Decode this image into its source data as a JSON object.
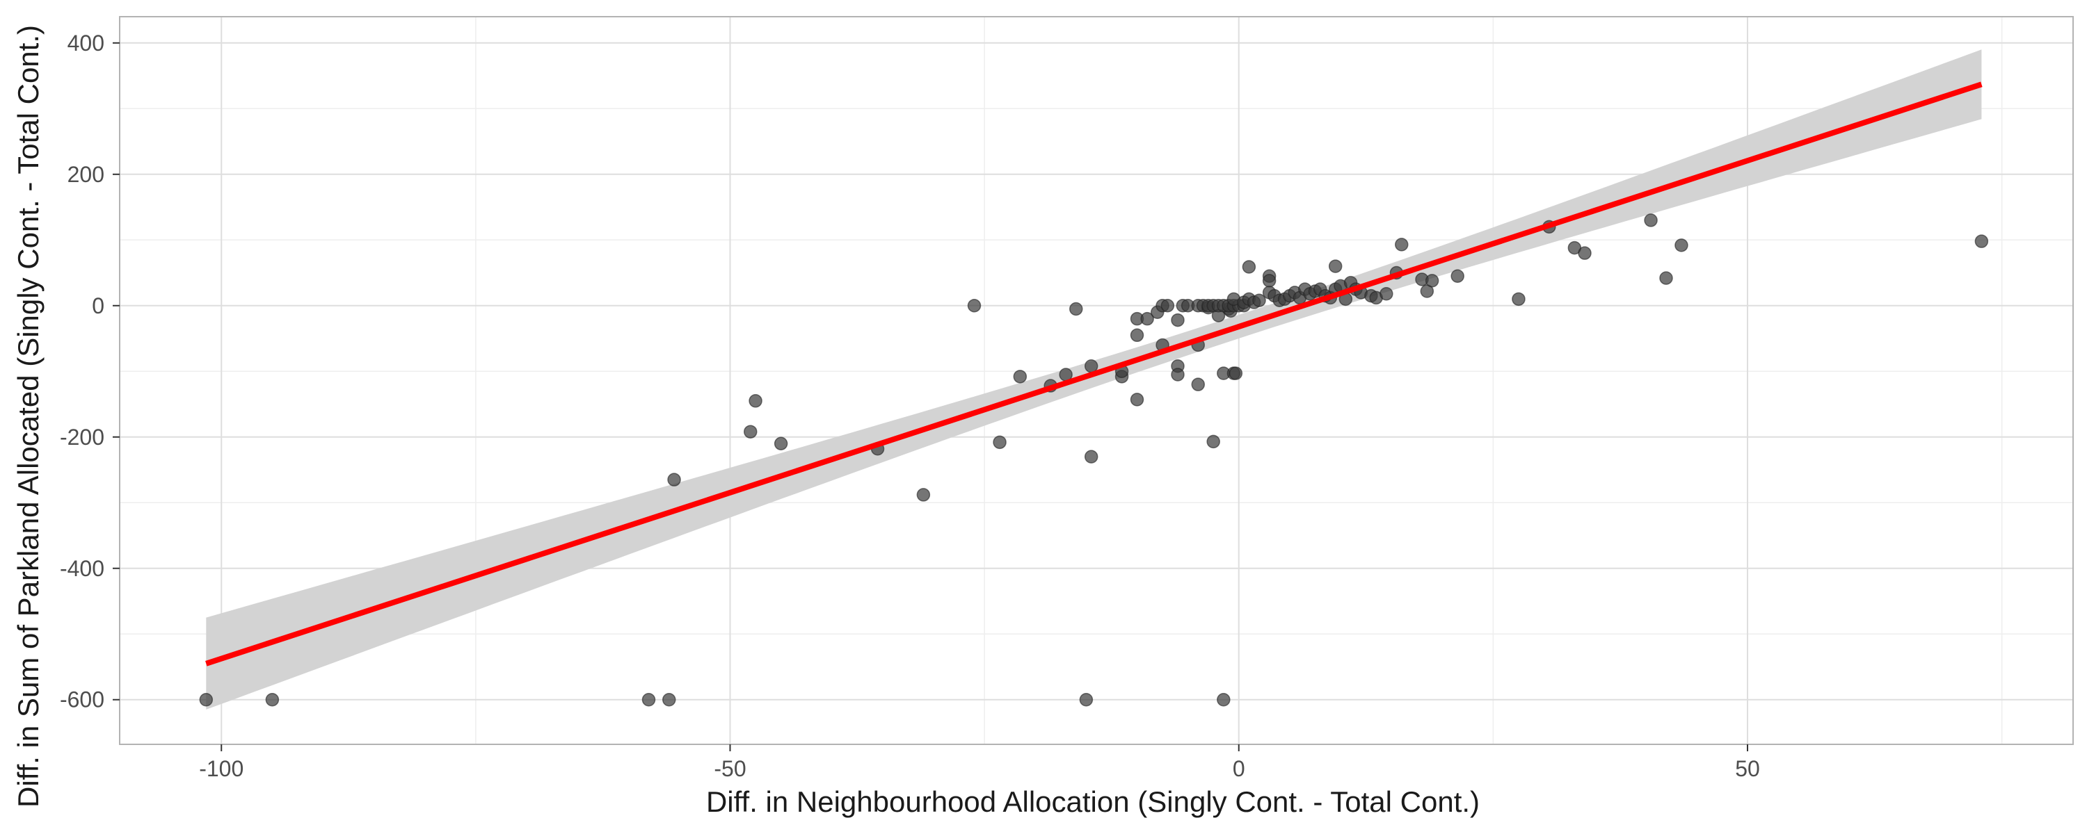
{
  "chart_data": {
    "type": "scatter",
    "title": "",
    "xlabel": "Diff. in Neighbourhood Allocation (Singly Cont. - Total Cont.)",
    "ylabel": "Diff. in Sum of Parkland Allocated (Singly Cont. - Total Cont.)",
    "xlim": [
      -110,
      82
    ],
    "ylim": [
      -668,
      440
    ],
    "x_ticks": [
      -100,
      -50,
      0,
      50
    ],
    "x_tick_labels": [
      "-100",
      "-50",
      "0",
      "50"
    ],
    "y_ticks": [
      400,
      200,
      0,
      -200,
      -400,
      -600
    ],
    "y_tick_labels": [
      "400",
      "200",
      "0",
      "-200",
      "-400",
      "-600"
    ],
    "grid": true,
    "legend": "none",
    "colors": {
      "points": "#3a3a3a",
      "fit_line": "#ff0000",
      "confidence_band": "#d3d3d3",
      "panel_border": "#b3b3b3",
      "grid_major": "#dedede",
      "grid_minor": "#eeeeee"
    },
    "fit": {
      "x": [
        -101.5,
        73
      ],
      "y": [
        -545,
        337
      ],
      "ci_upper": [
        -475,
        390
      ],
      "ci_lower": [
        -615,
        285
      ]
    },
    "series": [
      {
        "points": [
          [
            -101.5,
            -600
          ],
          [
            -95,
            -600
          ],
          [
            -58,
            -600
          ],
          [
            -56,
            -600
          ],
          [
            -15,
            -600
          ],
          [
            -1.5,
            -600
          ],
          [
            -55.5,
            -265
          ],
          [
            -47.5,
            -145
          ],
          [
            -48,
            -192
          ],
          [
            -45,
            -210
          ],
          [
            -35.5,
            -218
          ],
          [
            -31,
            -288
          ],
          [
            -23.5,
            -208
          ],
          [
            -21.5,
            -108
          ],
          [
            -18.5,
            -122
          ],
          [
            -17,
            -105
          ],
          [
            -16,
            -5
          ],
          [
            -14.5,
            -92
          ],
          [
            -14.5,
            -230
          ],
          [
            -26,
            0
          ],
          [
            -11.5,
            -108
          ],
          [
            -11.5,
            -100
          ],
          [
            -10,
            -143
          ],
          [
            -10,
            -45
          ],
          [
            -10,
            -20
          ],
          [
            -9,
            -20
          ],
          [
            -8,
            -10
          ],
          [
            -7.5,
            -60
          ],
          [
            -7.5,
            0
          ],
          [
            -7,
            0
          ],
          [
            -6,
            -92
          ],
          [
            -6,
            -105
          ],
          [
            -6,
            -22
          ],
          [
            -5.5,
            0
          ],
          [
            -5,
            0
          ],
          [
            -4,
            -60
          ],
          [
            -4,
            -120
          ],
          [
            -4,
            0
          ],
          [
            -3.5,
            0
          ],
          [
            -3,
            -3
          ],
          [
            -2.5,
            -207
          ],
          [
            -2,
            -15
          ],
          [
            -1.5,
            -103
          ],
          [
            -1,
            -5
          ],
          [
            -0.8,
            -8
          ],
          [
            -0.5,
            -103
          ],
          [
            -0.3,
            -103
          ],
          [
            -3,
            0
          ],
          [
            -2.5,
            0
          ],
          [
            -2,
            0
          ],
          [
            -1.5,
            0
          ],
          [
            -1,
            0
          ],
          [
            -0.5,
            0
          ],
          [
            0,
            0
          ],
          [
            0.5,
            0
          ],
          [
            -0.5,
            10
          ],
          [
            0.5,
            5
          ],
          [
            1,
            10
          ],
          [
            1.5,
            5
          ],
          [
            2,
            8
          ],
          [
            1,
            59
          ],
          [
            3,
            45
          ],
          [
            3,
            38
          ],
          [
            3,
            20
          ],
          [
            3.5,
            15
          ],
          [
            4,
            8
          ],
          [
            4.5,
            10
          ],
          [
            5,
            15
          ],
          [
            5.5,
            20
          ],
          [
            6,
            12
          ],
          [
            6.5,
            25
          ],
          [
            7,
            18
          ],
          [
            7.5,
            22
          ],
          [
            8,
            25
          ],
          [
            8.5,
            15
          ],
          [
            9,
            12
          ],
          [
            9.5,
            60
          ],
          [
            9.5,
            25
          ],
          [
            10,
            30
          ],
          [
            10.5,
            10
          ],
          [
            11,
            35
          ],
          [
            11.5,
            25
          ],
          [
            12,
            20
          ],
          [
            13,
            15
          ],
          [
            13.5,
            12
          ],
          [
            14.5,
            18
          ],
          [
            15.5,
            50
          ],
          [
            16,
            93
          ],
          [
            18,
            40
          ],
          [
            18.5,
            22
          ],
          [
            19,
            38
          ],
          [
            21.5,
            45
          ],
          [
            27.5,
            10
          ],
          [
            30.5,
            120
          ],
          [
            33,
            88
          ],
          [
            34,
            80
          ],
          [
            40.5,
            130
          ],
          [
            42,
            42
          ],
          [
            43.5,
            92
          ],
          [
            73,
            98
          ]
        ]
      }
    ]
  }
}
